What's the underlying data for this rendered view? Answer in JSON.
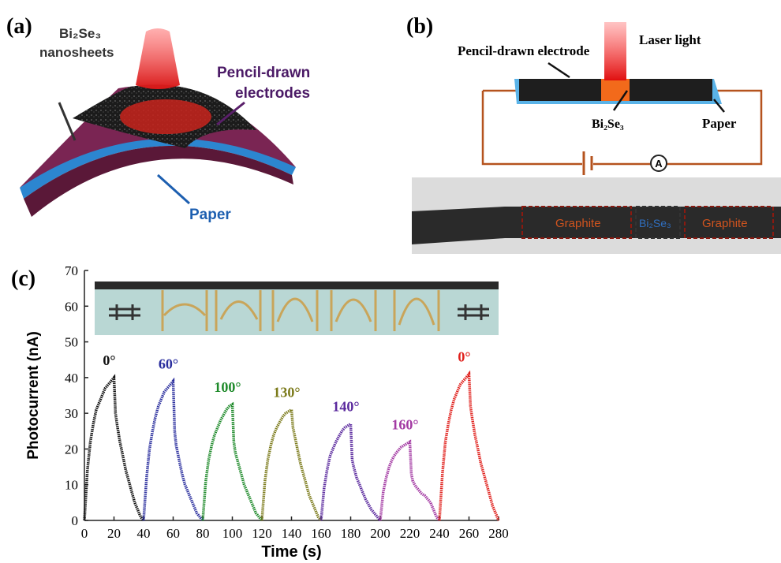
{
  "panel_a": {
    "label": "(a)",
    "sheet_label": [
      "Bi₂Se₃",
      "nanosheets"
    ],
    "electrode_label": [
      "Pencil-drawn",
      "electrodes"
    ],
    "paper_label": "Paper"
  },
  "panel_b": {
    "label": "(b)",
    "laser_label": "Laser light",
    "electrode_label": "Pencil-drawn electrode",
    "material_label": "Bi₂Se₃",
    "paper_label": "Paper",
    "ammeter": "A",
    "photo_labels": [
      "Graphite",
      "Bi₂Se₃",
      "Graphite"
    ]
  },
  "panel_c": {
    "label": "(c)"
  },
  "chart_data": {
    "type": "line",
    "xlabel": "Time (s)",
    "ylabel": "Photocurrent (nA)",
    "xlim": [
      0,
      280
    ],
    "xticks": [
      0,
      20,
      40,
      60,
      80,
      100,
      120,
      140,
      160,
      180,
      200,
      220,
      240,
      260,
      280
    ],
    "ylim": [
      0,
      70
    ],
    "yticks": [
      0,
      10,
      20,
      30,
      40,
      50,
      60,
      70
    ],
    "series": [
      {
        "name": "0°",
        "color": "#111111",
        "x": [
          0,
          2,
          4,
          6,
          8,
          10,
          12,
          14,
          16,
          18,
          20,
          21,
          22,
          24,
          26,
          28,
          30,
          32,
          34,
          36,
          38,
          40
        ],
        "values": [
          0,
          14,
          22,
          27,
          31,
          33,
          35,
          37,
          38,
          39,
          40,
          30,
          27,
          22,
          18,
          14,
          11,
          8,
          5,
          3,
          1,
          0
        ]
      },
      {
        "name": "60°",
        "color": "#2b2f9e",
        "x": [
          40,
          42,
          44,
          46,
          48,
          50,
          52,
          54,
          56,
          58,
          60,
          61,
          62,
          64,
          66,
          68,
          70,
          72,
          74,
          76,
          78,
          80
        ],
        "values": [
          0,
          12,
          20,
          25,
          29,
          32,
          34,
          36,
          37,
          38,
          39,
          25,
          21,
          17,
          13,
          10,
          8,
          6,
          4,
          2,
          1,
          0
        ]
      },
      {
        "name": "100°",
        "color": "#1e8a2a",
        "x": [
          80,
          82,
          84,
          86,
          88,
          90,
          92,
          94,
          96,
          98,
          100,
          101,
          102,
          104,
          106,
          108,
          110,
          112,
          114,
          116,
          118,
          120
        ],
        "values": [
          0,
          11,
          17,
          21,
          24,
          26,
          28,
          29.5,
          31,
          32,
          32.5,
          22,
          19,
          16,
          13,
          10,
          8,
          6,
          4,
          2,
          1,
          0
        ]
      },
      {
        "name": "130°",
        "color": "#7b7a1a",
        "x": [
          120,
          122,
          124,
          126,
          128,
          130,
          132,
          134,
          136,
          138,
          140,
          141,
          142,
          144,
          146,
          148,
          150,
          152,
          154,
          156,
          158,
          160
        ],
        "values": [
          0,
          11,
          17,
          21,
          24,
          26,
          27.5,
          29,
          30,
          30.5,
          31,
          26,
          24,
          20,
          16,
          13,
          10,
          7,
          5,
          3,
          1,
          0
        ]
      },
      {
        "name": "140°",
        "color": "#5b2a9e",
        "x": [
          160,
          162,
          164,
          166,
          168,
          170,
          172,
          174,
          176,
          178,
          180,
          181,
          182,
          184,
          186,
          188,
          190,
          192,
          194,
          196,
          198,
          200
        ],
        "values": [
          0,
          9,
          14,
          18,
          20,
          22,
          23.5,
          25,
          26,
          26.5,
          27,
          17,
          15,
          12,
          10,
          8,
          6,
          4.5,
          3,
          2,
          1,
          0
        ]
      },
      {
        "name": "160°",
        "color": "#a33aa3",
        "x": [
          200,
          202,
          204,
          206,
          208,
          210,
          212,
          214,
          216,
          218,
          220,
          221,
          222,
          224,
          226,
          228,
          230,
          232,
          234,
          236,
          238,
          240
        ],
        "values": [
          0,
          8,
          12,
          15,
          17,
          18.5,
          19.5,
          20.5,
          21,
          21.5,
          22,
          13,
          11,
          9.5,
          8.5,
          7.5,
          7,
          6,
          5,
          3,
          1,
          0
        ]
      },
      {
        "name": "0°",
        "color": "#e0201c",
        "x": [
          240,
          242,
          244,
          246,
          248,
          250,
          252,
          254,
          256,
          258,
          260,
          261,
          262,
          264,
          266,
          268,
          270,
          272,
          274,
          276,
          278,
          280
        ],
        "values": [
          0,
          13,
          22,
          27,
          31,
          34,
          36,
          38,
          39,
          40,
          41,
          32,
          29,
          24,
          20,
          16,
          13,
          10,
          7,
          4,
          2,
          0
        ]
      }
    ]
  }
}
